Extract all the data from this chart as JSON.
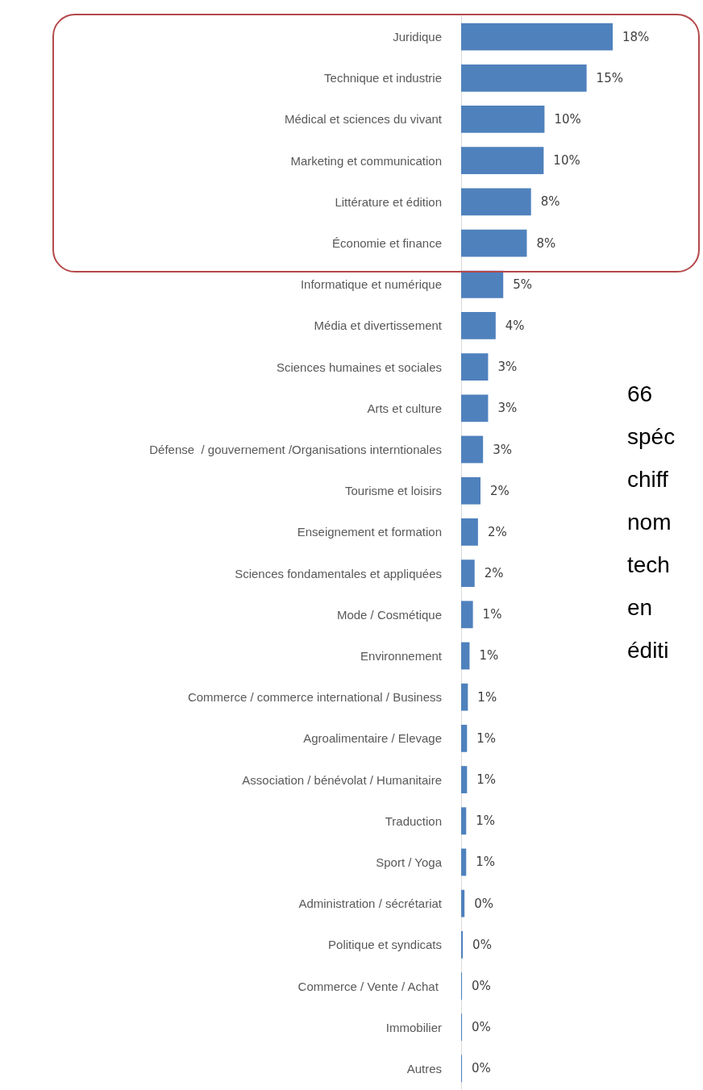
{
  "chart_data": {
    "type": "bar",
    "orientation": "horizontal",
    "categories": [
      "Juridique",
      "Technique et industrie",
      "Médical et sciences du vivant",
      "Marketing et communication",
      "Littérature et édition",
      "Économie et finance",
      "Informatique et numérique",
      "Média et divertissement",
      "Sciences humaines et sociales",
      "Arts et culture",
      "Défense  / gouvernement /Organisations interntionales",
      "Tourisme et loisirs",
      "Enseignement et formation",
      "Sciences fondamentales et appliquées",
      "Mode / Cosmétique",
      "Environnement",
      "Commerce / commerce international / Business",
      "Agroalimentaire / Elevage",
      "Association / bénévolat / Humanitaire",
      "Traduction",
      "Sport / Yoga",
      "Administration / sécrétariat",
      "Politique et syndicats",
      "Commerce / Vente / Achat ",
      "Immobilier",
      "Autres"
    ],
    "values": [
      18,
      14.9,
      9.9,
      9.8,
      8.3,
      7.8,
      5.0,
      4.1,
      3.2,
      3.2,
      2.6,
      2.3,
      2.0,
      1.6,
      1.4,
      1.0,
      0.8,
      0.7,
      0.7,
      0.6,
      0.6,
      0.4,
      0.2,
      0.1,
      0.1,
      0.1
    ],
    "value_labels": [
      "18%",
      "15%",
      "10%",
      "10%",
      "8%",
      "8%",
      "5%",
      "4%",
      "3%",
      "3%",
      "3%",
      "2%",
      "2%",
      "2%",
      "1%",
      "1%",
      "1%",
      "1%",
      "1%",
      "1%",
      "1%",
      "0%",
      "0%",
      "0%",
      "0%",
      "0%"
    ],
    "color": "#4f81bd",
    "annotations": [
      "66\nspéc\nchiff\nnom\ntech\nen\néditi"
    ]
  }
}
